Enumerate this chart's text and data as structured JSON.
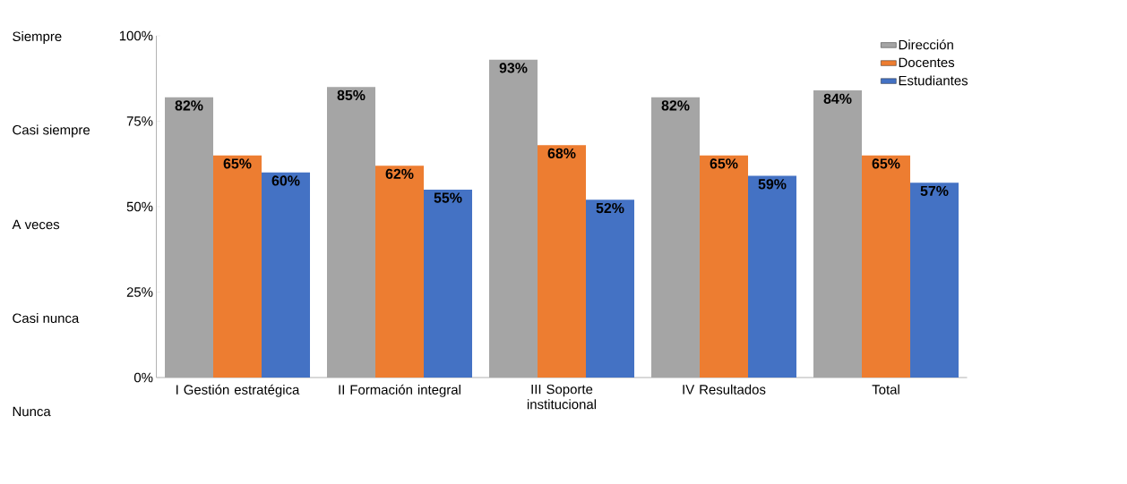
{
  "chart_data": {
    "type": "bar",
    "categories": [
      "I Gestión estratégica",
      "II Formación integral",
      "III Soporte institucional",
      "IV Resultados",
      "Total"
    ],
    "series": [
      {
        "name": "Dirección",
        "color": "#a5a5a5",
        "values": [
          82,
          85,
          93,
          82,
          84
        ],
        "value_labels": [
          "82%",
          "85%",
          "93%",
          "82%",
          "84%"
        ]
      },
      {
        "name": "Docentes",
        "color": "#ed7d31",
        "values": [
          65,
          62,
          68,
          65,
          65
        ],
        "value_labels": [
          "65%",
          "62%",
          "68%",
          "65%",
          "65%"
        ]
      },
      {
        "name": "Estudiantes",
        "color": "#4472c4",
        "values": [
          60,
          55,
          52,
          59,
          57
        ],
        "value_labels": [
          "60%",
          "55%",
          "52%",
          "59%",
          "57%"
        ]
      }
    ],
    "ylim": [
      0,
      100
    ],
    "yticks": [
      {
        "value": 0,
        "label": "0%"
      },
      {
        "value": 25,
        "label": "25%"
      },
      {
        "value": 50,
        "label": "50%"
      },
      {
        "value": 75,
        "label": "75%"
      },
      {
        "value": 100,
        "label": "100%"
      }
    ],
    "annotations": [
      "Siempre",
      "Casi siempre",
      "A veces",
      "Casi nunca",
      "Nunca"
    ],
    "legend": "top right",
    "grid": false
  }
}
